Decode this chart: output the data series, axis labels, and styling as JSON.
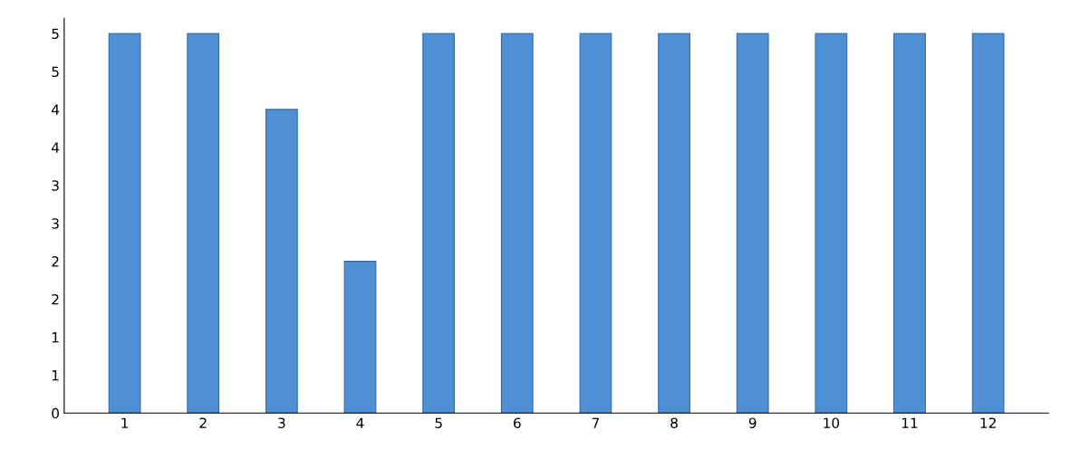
{
  "chart_data": {
    "type": "bar",
    "categories": [
      "1",
      "2",
      "3",
      "4",
      "5",
      "6",
      "7",
      "8",
      "9",
      "10",
      "11",
      "12"
    ],
    "values": [
      5,
      5,
      4,
      2,
      5,
      5,
      5,
      5,
      5,
      5,
      5,
      5
    ],
    "color": "#4f8fd3",
    "ylim": [
      0,
      5.2
    ],
    "yticks": [
      0,
      {
        "value": 0.5,
        "label": "1"
      },
      1,
      {
        "value": 1.5,
        "label": "2"
      },
      2,
      {
        "value": 2.5,
        "label": "3"
      },
      3,
      {
        "value": 3.5,
        "label": "4"
      },
      4,
      {
        "value": 4.5,
        "label": "5"
      },
      5
    ],
    "grid": false
  }
}
